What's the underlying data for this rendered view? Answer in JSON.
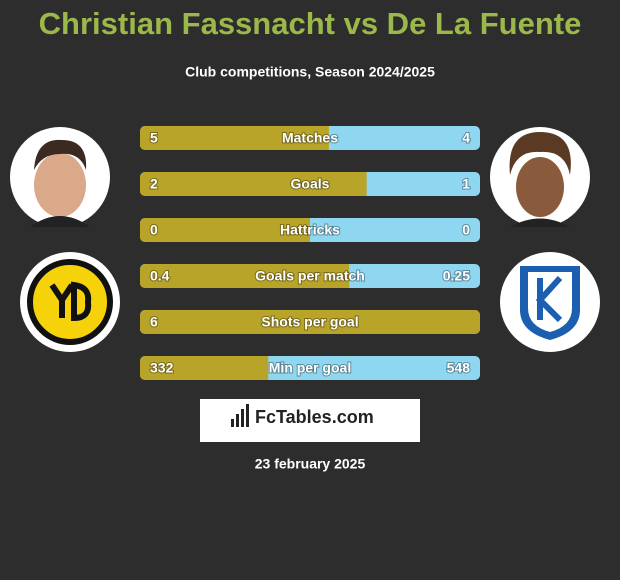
{
  "header": {
    "title": "Christian Fassnacht vs De La Fuente",
    "subtitle": "Club competitions, Season 2024/2025"
  },
  "rows": [
    {
      "label": "Matches",
      "left": 5,
      "right": 4
    },
    {
      "label": "Goals",
      "left": 2,
      "right": 1
    },
    {
      "label": "Hattricks",
      "left": 0,
      "right": 0
    },
    {
      "label": "Goals per match",
      "left": 0.4,
      "right": 0.25
    },
    {
      "label": "Shots per goal",
      "left": 6,
      "right": null
    },
    {
      "label": "Min per goal",
      "left": 332,
      "right": 548
    }
  ],
  "footer": {
    "brand": "FcTables.com",
    "date": "23 february 2025"
  }
}
